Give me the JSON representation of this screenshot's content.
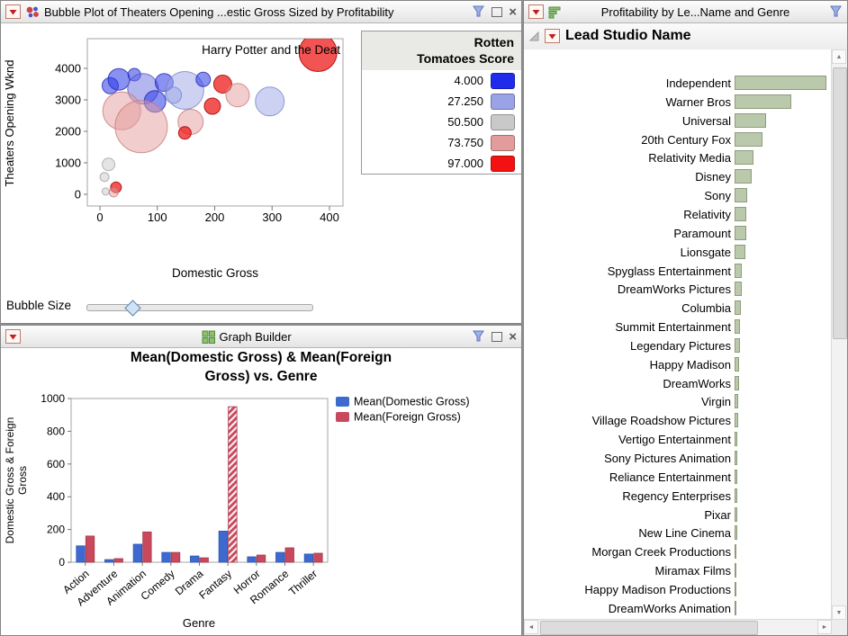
{
  "icons": {
    "red_triangle": "▼",
    "close": "×",
    "scroll_up": "▲",
    "scroll_down": "▼",
    "scroll_left": "◄",
    "scroll_right": "►"
  },
  "bubble_panel": {
    "title": "Bubble Plot of Theaters Opening ...estic Gross Sized by Profitability",
    "bubble_size_label": "Bubble Size"
  },
  "graph_builder_panel": {
    "title": "Graph Builder"
  },
  "studio_panel": {
    "title": "Profitability by Le...Name and Genre",
    "header": "Lead Studio Name"
  },
  "chart_data": [
    {
      "type": "scatter",
      "title": "Bubble Plot of Theaters Opening Wknd vs Domestic Gross Sized by Profitability",
      "xlabel": "Domestic Gross",
      "ylabel": "Theaters Opening Wknd",
      "xlim": [
        -22,
        430
      ],
      "ylim": [
        -400,
        4900
      ],
      "x_ticks": [
        0,
        100,
        200,
        300,
        400
      ],
      "y_ticks": [
        0,
        1000,
        2000,
        3000,
        4000
      ],
      "annotation": {
        "text": "Harry Potter and the Deat",
        "x": 380,
        "y": 4500
      },
      "color_scale_title": "Rotten Tomatoes Score",
      "color_scale_title_lines": [
        "Rotten",
        "Tomatoes Score"
      ],
      "color_scale": [
        {
          "label": "4.000",
          "value": 4.0,
          "color": "#1f2ceb"
        },
        {
          "label": "27.250",
          "value": 27.25,
          "color": "#9aa3e6"
        },
        {
          "label": "50.500",
          "value": 50.5,
          "color": "#c9c9c9"
        },
        {
          "label": "73.750",
          "value": 73.75,
          "color": "#e29c9c"
        },
        {
          "label": "97.000",
          "value": 97.0,
          "color": "#f31111"
        }
      ],
      "point_colors": {
        "blue": {
          "fill": "rgba(40,55,230,0.55)",
          "stroke": "rgba(30,40,180,0.8)"
        },
        "mblue": {
          "fill": "rgba(105,110,225,0.5)",
          "stroke": "rgba(80,85,190,0.8)"
        },
        "lblue": {
          "fill": "rgba(155,165,232,0.5)",
          "stroke": "rgba(120,130,200,0.8)"
        },
        "gray": {
          "fill": "rgba(205,205,205,0.55)",
          "stroke": "rgba(160,160,160,0.8)"
        },
        "lred": {
          "fill": "rgba(228,155,155,0.5)",
          "stroke": "rgba(200,120,120,0.8)"
        },
        "red": {
          "fill": "rgba(238,25,25,0.75)",
          "stroke": "rgba(170,10,10,0.9)"
        }
      },
      "points": [
        {
          "x": 380,
          "y": 4500,
          "r": 21,
          "color": "red"
        },
        {
          "x": 18,
          "y": 3450,
          "r": 9,
          "color": "blue"
        },
        {
          "x": 33,
          "y": 3650,
          "r": 12,
          "color": "blue"
        },
        {
          "x": 60,
          "y": 3800,
          "r": 7,
          "color": "blue"
        },
        {
          "x": 75,
          "y": 3350,
          "r": 17,
          "color": "mblue"
        },
        {
          "x": 112,
          "y": 3550,
          "r": 10,
          "color": "blue"
        },
        {
          "x": 148,
          "y": 3300,
          "r": 21,
          "color": "lblue"
        },
        {
          "x": 180,
          "y": 3650,
          "r": 8,
          "color": "blue"
        },
        {
          "x": 214,
          "y": 3500,
          "r": 10,
          "color": "red"
        },
        {
          "x": 240,
          "y": 3150,
          "r": 13,
          "color": "lred"
        },
        {
          "x": 296,
          "y": 2950,
          "r": 16,
          "color": "lblue"
        },
        {
          "x": 128,
          "y": 3150,
          "r": 9,
          "color": "lblue"
        },
        {
          "x": 96,
          "y": 2950,
          "r": 12,
          "color": "blue"
        },
        {
          "x": 38,
          "y": 2650,
          "r": 21,
          "color": "lred"
        },
        {
          "x": 72,
          "y": 2150,
          "r": 29,
          "color": "lred"
        },
        {
          "x": 158,
          "y": 2300,
          "r": 14,
          "color": "lred"
        },
        {
          "x": 196,
          "y": 2800,
          "r": 9,
          "color": "red"
        },
        {
          "x": 148,
          "y": 1950,
          "r": 7,
          "color": "red"
        },
        {
          "x": 15,
          "y": 950,
          "r": 7,
          "color": "gray"
        },
        {
          "x": 8,
          "y": 550,
          "r": 5,
          "color": "gray"
        },
        {
          "x": 28,
          "y": 220,
          "r": 6,
          "color": "red"
        },
        {
          "x": 10,
          "y": 90,
          "r": 4,
          "color": "gray"
        },
        {
          "x": 24,
          "y": 60,
          "r": 5,
          "color": "lred"
        }
      ]
    },
    {
      "type": "bar",
      "title": "Mean(Domestic Gross) & Mean(Foreign Gross) vs. Genre",
      "title_lines": [
        "Mean(Domestic Gross) & Mean(Foreign",
        "Gross) vs. Genre"
      ],
      "xlabel": "Genre",
      "ylabel": "Domestic Gross & Foreign Gross",
      "ylabel_lines": [
        "Domestic Gross & Foreign",
        "Gross"
      ],
      "ylim": [
        0,
        1000
      ],
      "y_ticks": [
        0,
        200,
        400,
        600,
        800,
        1000
      ],
      "legend_position": "right-top",
      "categories": [
        "Action",
        "Adventure",
        "Animation",
        "Comedy",
        "Drama",
        "Fantasy",
        "Horror",
        "Romance",
        "Thriller"
      ],
      "series": [
        {
          "name": "Mean(Domestic Gross)",
          "color": "#3e6ad0",
          "border": "#2d54b0",
          "values": [
            100,
            16,
            110,
            60,
            38,
            190,
            33,
            60,
            50
          ]
        },
        {
          "name": "Mean(Foreign Gross)",
          "color": "#c9495c",
          "border": "#a53848",
          "hatched_category": "Fantasy",
          "values": [
            160,
            22,
            185,
            60,
            27,
            950,
            44,
            88,
            55
          ]
        }
      ]
    },
    {
      "type": "bar",
      "orientation": "horizontal",
      "title": "Lead Studio Name",
      "bar_color": "#bac9ab",
      "bar_border": "#8c9c7c",
      "xlim": [
        0,
        100
      ],
      "categories": [
        "Independent",
        "Warner Bros",
        "Universal",
        "20th Century Fox",
        "Relativity Media",
        "Disney",
        "Sony",
        "Relativity",
        "Paramount",
        "Lionsgate",
        "Spyglass Entertainment",
        "DreamWorks Pictures",
        "Columbia",
        "Summit Entertainment",
        "Legendary Pictures",
        "Happy Madison",
        "DreamWorks",
        "Virgin",
        "Village Roadshow Pictures",
        "Vertigo Entertainment",
        "Sony Pictures Animation",
        "Reliance Entertainment",
        "Regency Enterprises",
        "Pixar",
        "New Line Cinema",
        "Morgan Creek Productions",
        "Miramax Films",
        "Happy Madison Productions",
        "DreamWorks Animation"
      ],
      "values": [
        100,
        62,
        34,
        30,
        21,
        19,
        14,
        13,
        12.5,
        12,
        8,
        8,
        7,
        6,
        5.5,
        5,
        4.5,
        4,
        3.5,
        3,
        3,
        3,
        2.5,
        2.5,
        2.5,
        2,
        2,
        2,
        2
      ]
    }
  ]
}
